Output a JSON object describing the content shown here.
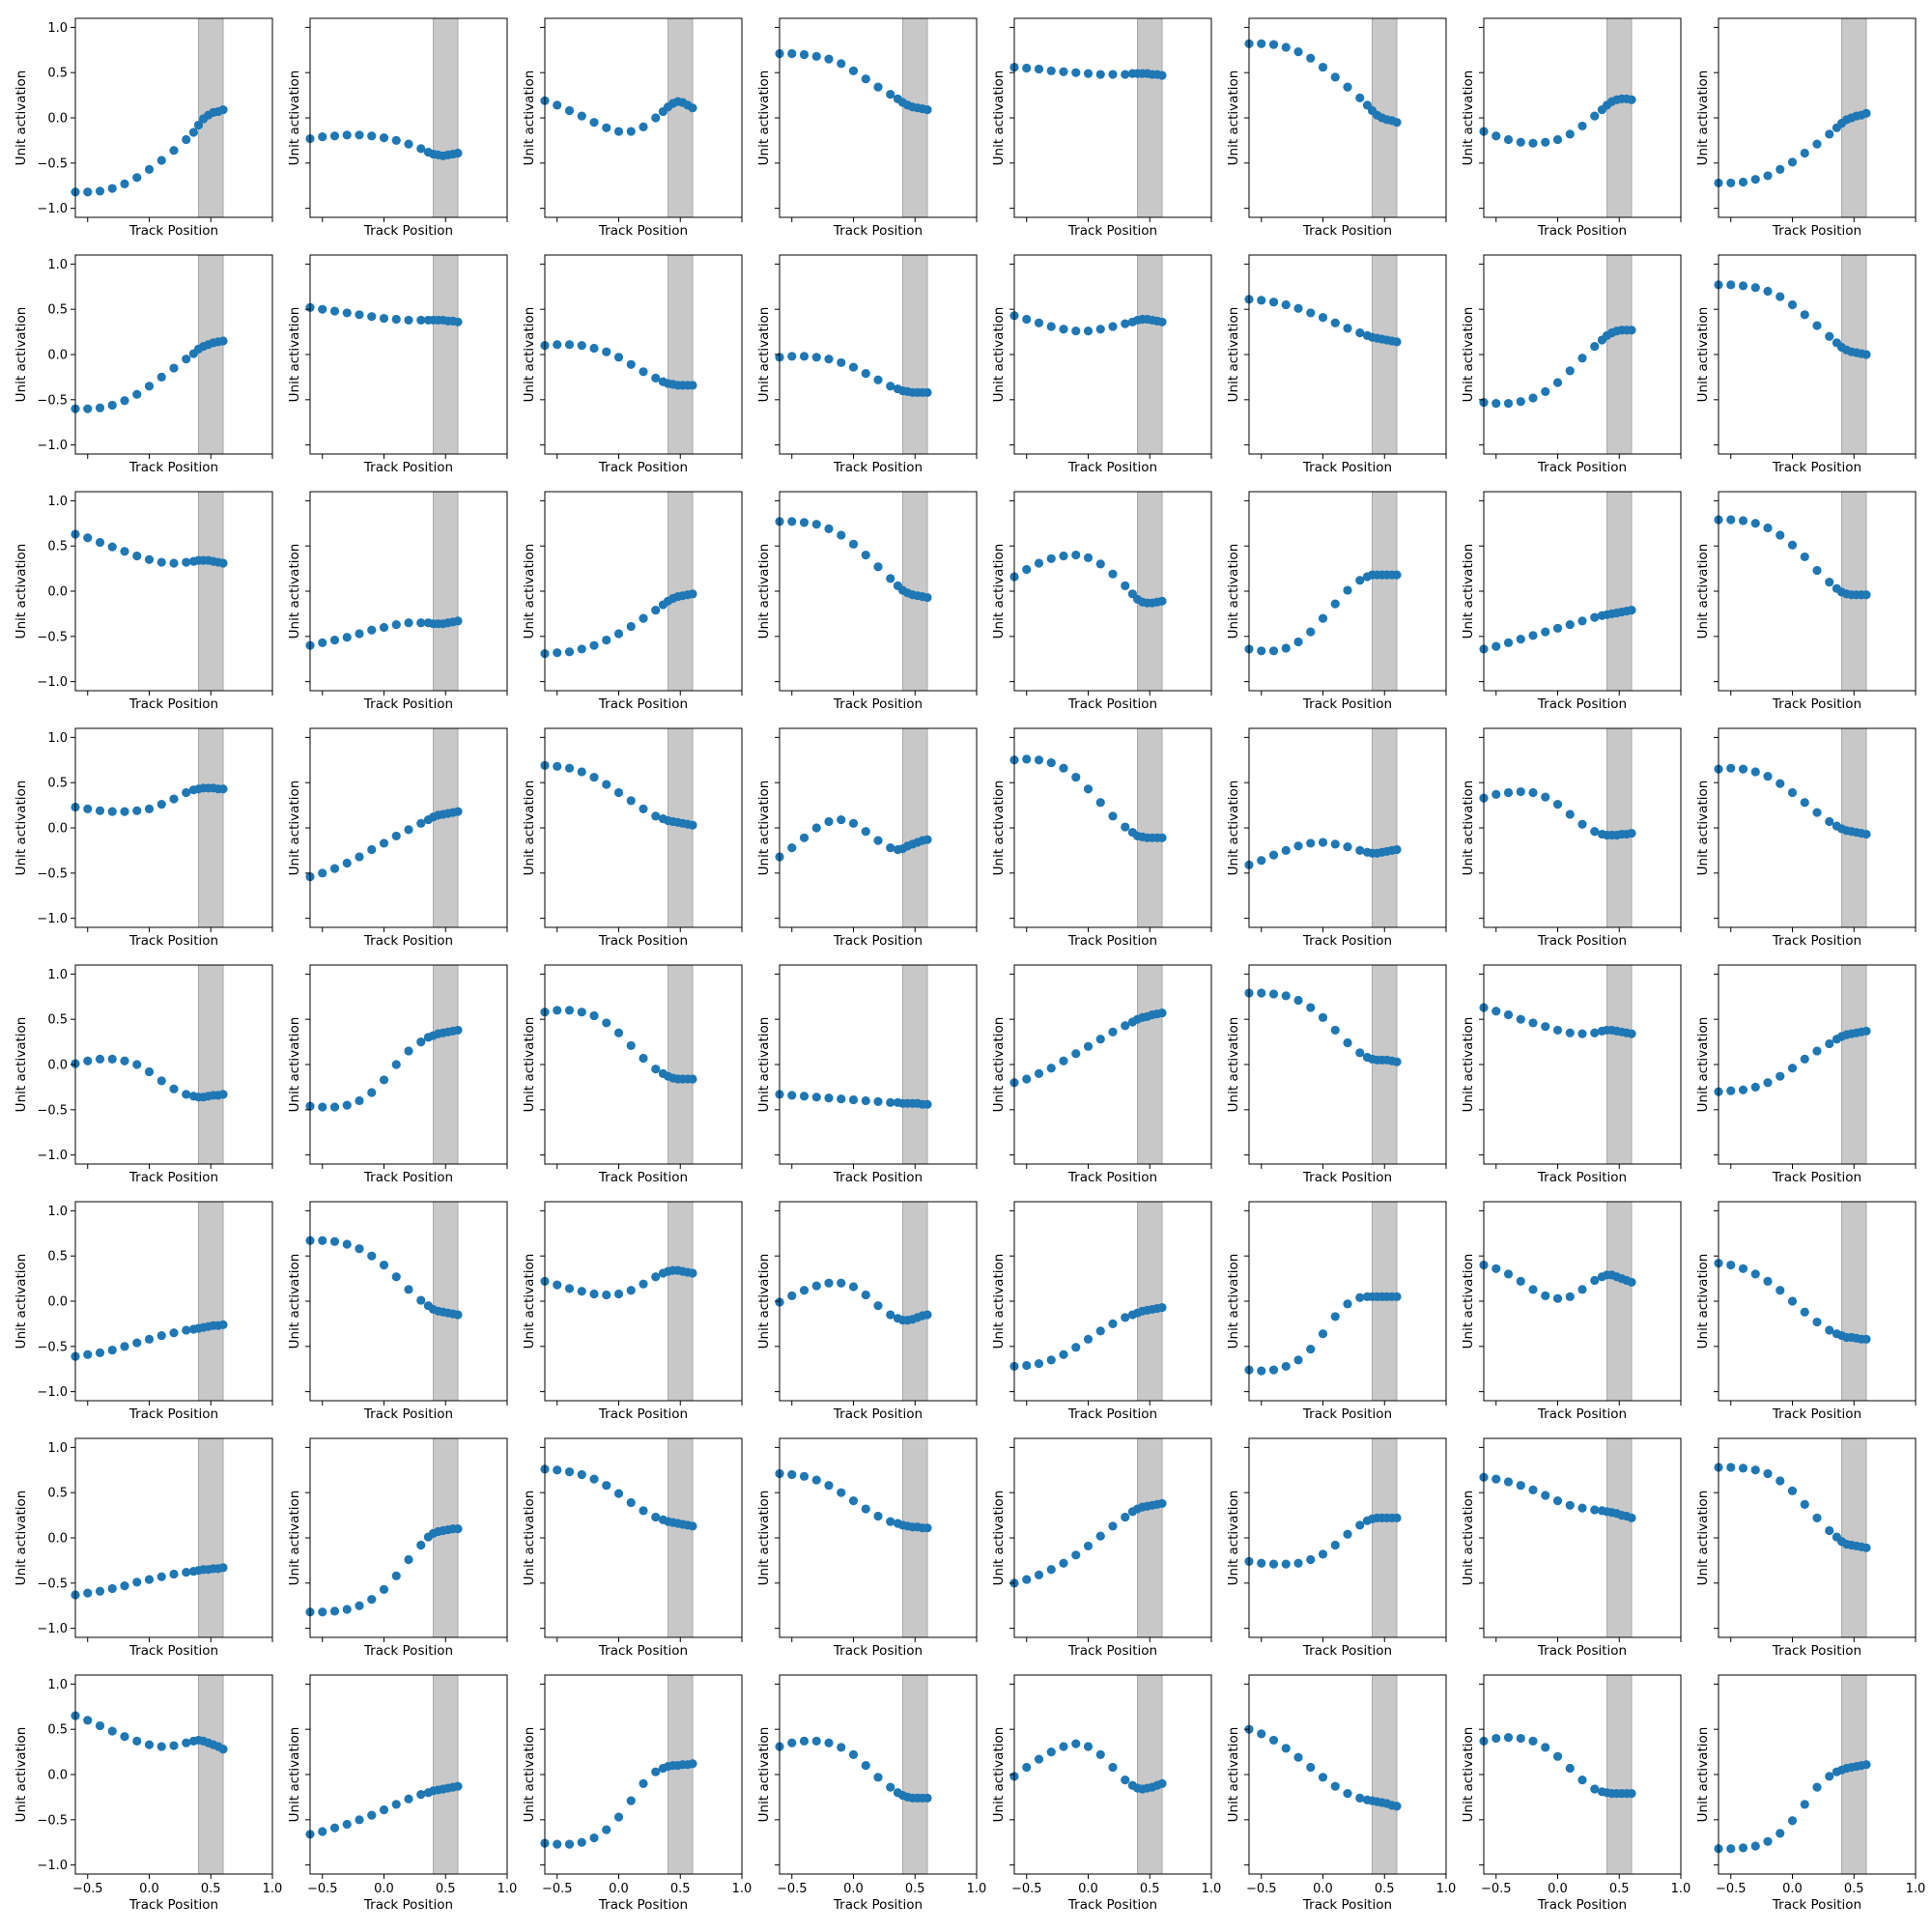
{
  "colors": {
    "marker": "#1f77b4",
    "band": "#c8c8c8",
    "band_edge": "#a9a9a9",
    "axes": "#000000",
    "background": "#ffffff"
  },
  "chart_data": {
    "type": "scatter",
    "layout": "8x8 grid of small multiples, shared x-axis, shared y-axis",
    "xlabel": "Track Position",
    "ylabel": "Unit activation",
    "xlim": [
      -0.6,
      1.0
    ],
    "ylim": [
      -1.1,
      1.1
    ],
    "xticks": [
      -0.5,
      0.0,
      0.5,
      1.0
    ],
    "xtick_labels": [
      "−0.5",
      "0.0",
      "0.5",
      "1.0"
    ],
    "yticks": [
      -1.0,
      -0.5,
      0.0,
      0.5,
      1.0
    ],
    "ytick_labels": [
      "−1.0",
      "−0.5",
      "0.0",
      "0.5",
      "1.0"
    ],
    "grid": false,
    "legend": "none",
    "highlight_band": {
      "x0": 0.4,
      "x1": 0.6
    },
    "x": [
      -0.6,
      -0.5,
      -0.4,
      -0.3,
      -0.2,
      -0.1,
      0.0,
      0.1,
      0.2,
      0.3,
      0.36,
      0.4,
      0.44,
      0.48,
      0.52,
      0.56,
      0.6
    ],
    "panels": [
      [
        -0.82,
        -0.82,
        -0.81,
        -0.78,
        -0.73,
        -0.66,
        -0.57,
        -0.47,
        -0.36,
        -0.24,
        -0.16,
        -0.08,
        -0.01,
        0.03,
        0.06,
        0.07,
        0.09
      ],
      [
        -0.23,
        -0.21,
        -0.2,
        -0.19,
        -0.19,
        -0.2,
        -0.22,
        -0.25,
        -0.29,
        -0.34,
        -0.38,
        -0.4,
        -0.41,
        -0.42,
        -0.41,
        -0.4,
        -0.39
      ],
      [
        0.19,
        0.14,
        0.08,
        0.02,
        -0.05,
        -0.11,
        -0.15,
        -0.15,
        -0.1,
        0.0,
        0.07,
        0.12,
        0.16,
        0.18,
        0.17,
        0.14,
        0.11
      ],
      [
        0.71,
        0.71,
        0.7,
        0.68,
        0.65,
        0.6,
        0.52,
        0.43,
        0.34,
        0.26,
        0.21,
        0.17,
        0.14,
        0.12,
        0.11,
        0.1,
        0.09
      ],
      [
        0.56,
        0.55,
        0.54,
        0.52,
        0.51,
        0.5,
        0.49,
        0.48,
        0.48,
        0.48,
        0.49,
        0.49,
        0.49,
        0.49,
        0.48,
        0.48,
        0.47
      ],
      [
        0.82,
        0.82,
        0.81,
        0.78,
        0.73,
        0.66,
        0.56,
        0.45,
        0.34,
        0.22,
        0.14,
        0.08,
        0.03,
        0.0,
        -0.02,
        -0.03,
        -0.05
      ],
      [
        -0.15,
        -0.2,
        -0.24,
        -0.27,
        -0.28,
        -0.27,
        -0.24,
        -0.18,
        -0.09,
        0.02,
        0.09,
        0.14,
        0.18,
        0.2,
        0.21,
        0.21,
        0.2
      ],
      [
        -0.72,
        -0.72,
        -0.71,
        -0.68,
        -0.64,
        -0.57,
        -0.49,
        -0.39,
        -0.29,
        -0.18,
        -0.11,
        -0.06,
        -0.02,
        0.0,
        0.02,
        0.03,
        0.05
      ],
      [
        -0.6,
        -0.6,
        -0.59,
        -0.56,
        -0.51,
        -0.44,
        -0.35,
        -0.25,
        -0.15,
        -0.05,
        0.01,
        0.06,
        0.09,
        0.11,
        0.13,
        0.14,
        0.15
      ],
      [
        0.52,
        0.5,
        0.48,
        0.46,
        0.44,
        0.42,
        0.4,
        0.39,
        0.38,
        0.38,
        0.38,
        0.38,
        0.38,
        0.38,
        0.37,
        0.37,
        0.36
      ],
      [
        0.1,
        0.11,
        0.11,
        0.1,
        0.07,
        0.03,
        -0.03,
        -0.11,
        -0.19,
        -0.26,
        -0.3,
        -0.32,
        -0.33,
        -0.34,
        -0.34,
        -0.34,
        -0.34
      ],
      [
        -0.03,
        -0.02,
        -0.02,
        -0.03,
        -0.05,
        -0.09,
        -0.14,
        -0.21,
        -0.28,
        -0.35,
        -0.38,
        -0.4,
        -0.41,
        -0.42,
        -0.42,
        -0.42,
        -0.42
      ],
      [
        0.43,
        0.39,
        0.35,
        0.31,
        0.28,
        0.26,
        0.26,
        0.28,
        0.31,
        0.34,
        0.36,
        0.38,
        0.39,
        0.39,
        0.38,
        0.37,
        0.36
      ],
      [
        0.61,
        0.6,
        0.58,
        0.55,
        0.51,
        0.46,
        0.41,
        0.35,
        0.29,
        0.24,
        0.21,
        0.19,
        0.18,
        0.17,
        0.16,
        0.15,
        0.14
      ],
      [
        -0.53,
        -0.54,
        -0.54,
        -0.52,
        -0.48,
        -0.41,
        -0.31,
        -0.18,
        -0.04,
        0.09,
        0.16,
        0.21,
        0.24,
        0.26,
        0.27,
        0.27,
        0.27
      ],
      [
        0.77,
        0.77,
        0.76,
        0.74,
        0.7,
        0.64,
        0.55,
        0.44,
        0.32,
        0.2,
        0.13,
        0.08,
        0.05,
        0.03,
        0.02,
        0.01,
        0.0
      ],
      [
        0.63,
        0.59,
        0.54,
        0.49,
        0.44,
        0.39,
        0.35,
        0.32,
        0.31,
        0.32,
        0.33,
        0.34,
        0.34,
        0.34,
        0.33,
        0.32,
        0.31
      ],
      [
        -0.6,
        -0.57,
        -0.54,
        -0.51,
        -0.47,
        -0.43,
        -0.4,
        -0.37,
        -0.35,
        -0.35,
        -0.35,
        -0.36,
        -0.36,
        -0.36,
        -0.35,
        -0.34,
        -0.33
      ],
      [
        -0.69,
        -0.68,
        -0.67,
        -0.64,
        -0.6,
        -0.54,
        -0.47,
        -0.39,
        -0.3,
        -0.21,
        -0.15,
        -0.11,
        -0.08,
        -0.06,
        -0.05,
        -0.04,
        -0.03
      ],
      [
        0.77,
        0.77,
        0.76,
        0.74,
        0.69,
        0.62,
        0.52,
        0.4,
        0.27,
        0.14,
        0.06,
        0.01,
        -0.02,
        -0.04,
        -0.05,
        -0.06,
        -0.07
      ],
      [
        0.16,
        0.24,
        0.31,
        0.36,
        0.39,
        0.4,
        0.37,
        0.3,
        0.19,
        0.06,
        -0.03,
        -0.09,
        -0.12,
        -0.13,
        -0.13,
        -0.12,
        -0.11
      ],
      [
        -0.64,
        -0.66,
        -0.66,
        -0.63,
        -0.56,
        -0.45,
        -0.3,
        -0.14,
        0.01,
        0.12,
        0.16,
        0.18,
        0.18,
        0.18,
        0.18,
        0.18,
        0.18
      ],
      [
        -0.64,
        -0.61,
        -0.57,
        -0.53,
        -0.49,
        -0.45,
        -0.41,
        -0.37,
        -0.33,
        -0.29,
        -0.27,
        -0.26,
        -0.25,
        -0.24,
        -0.23,
        -0.22,
        -0.21
      ],
      [
        0.79,
        0.79,
        0.78,
        0.75,
        0.7,
        0.62,
        0.51,
        0.38,
        0.23,
        0.1,
        0.03,
        -0.01,
        -0.03,
        -0.04,
        -0.04,
        -0.04,
        -0.04
      ],
      [
        0.23,
        0.21,
        0.19,
        0.18,
        0.18,
        0.19,
        0.21,
        0.26,
        0.32,
        0.39,
        0.42,
        0.43,
        0.44,
        0.44,
        0.44,
        0.43,
        0.43
      ],
      [
        -0.54,
        -0.5,
        -0.45,
        -0.39,
        -0.32,
        -0.24,
        -0.17,
        -0.09,
        -0.02,
        0.05,
        0.09,
        0.12,
        0.14,
        0.15,
        0.16,
        0.17,
        0.18
      ],
      [
        0.69,
        0.68,
        0.66,
        0.62,
        0.56,
        0.48,
        0.39,
        0.3,
        0.21,
        0.13,
        0.1,
        0.08,
        0.07,
        0.06,
        0.05,
        0.04,
        0.03
      ],
      [
        -0.32,
        -0.22,
        -0.11,
        0.0,
        0.07,
        0.09,
        0.05,
        -0.04,
        -0.14,
        -0.22,
        -0.24,
        -0.23,
        -0.2,
        -0.18,
        -0.16,
        -0.14,
        -0.13
      ],
      [
        0.75,
        0.76,
        0.75,
        0.72,
        0.66,
        0.56,
        0.43,
        0.28,
        0.13,
        0.01,
        -0.05,
        -0.09,
        -0.1,
        -0.11,
        -0.11,
        -0.11,
        -0.11
      ],
      [
        -0.41,
        -0.36,
        -0.3,
        -0.25,
        -0.2,
        -0.17,
        -0.16,
        -0.18,
        -0.21,
        -0.25,
        -0.27,
        -0.28,
        -0.28,
        -0.27,
        -0.26,
        -0.25,
        -0.24
      ],
      [
        0.33,
        0.37,
        0.39,
        0.4,
        0.39,
        0.34,
        0.26,
        0.15,
        0.04,
        -0.04,
        -0.07,
        -0.08,
        -0.08,
        -0.08,
        -0.07,
        -0.07,
        -0.06
      ],
      [
        0.65,
        0.66,
        0.65,
        0.62,
        0.57,
        0.49,
        0.39,
        0.28,
        0.17,
        0.07,
        0.02,
        -0.01,
        -0.03,
        -0.04,
        -0.05,
        -0.06,
        -0.07
      ],
      [
        0.01,
        0.04,
        0.06,
        0.06,
        0.04,
        0.0,
        -0.08,
        -0.18,
        -0.27,
        -0.33,
        -0.35,
        -0.36,
        -0.36,
        -0.35,
        -0.34,
        -0.34,
        -0.33
      ],
      [
        -0.46,
        -0.47,
        -0.47,
        -0.45,
        -0.4,
        -0.31,
        -0.17,
        0.0,
        0.15,
        0.25,
        0.3,
        0.32,
        0.34,
        0.35,
        0.36,
        0.37,
        0.38
      ],
      [
        0.58,
        0.6,
        0.6,
        0.58,
        0.54,
        0.46,
        0.35,
        0.21,
        0.07,
        -0.05,
        -0.1,
        -0.13,
        -0.15,
        -0.16,
        -0.16,
        -0.16,
        -0.16
      ],
      [
        -0.33,
        -0.34,
        -0.35,
        -0.36,
        -0.37,
        -0.38,
        -0.39,
        -0.4,
        -0.41,
        -0.42,
        -0.42,
        -0.43,
        -0.43,
        -0.43,
        -0.43,
        -0.44,
        -0.44
      ],
      [
        -0.2,
        -0.16,
        -0.1,
        -0.04,
        0.04,
        0.12,
        0.2,
        0.28,
        0.36,
        0.43,
        0.47,
        0.5,
        0.52,
        0.53,
        0.55,
        0.56,
        0.57
      ],
      [
        0.79,
        0.79,
        0.78,
        0.76,
        0.71,
        0.63,
        0.52,
        0.38,
        0.24,
        0.13,
        0.08,
        0.06,
        0.05,
        0.05,
        0.05,
        0.04,
        0.03
      ],
      [
        0.63,
        0.59,
        0.55,
        0.5,
        0.46,
        0.42,
        0.38,
        0.35,
        0.34,
        0.35,
        0.37,
        0.38,
        0.38,
        0.37,
        0.36,
        0.35,
        0.34
      ],
      [
        -0.3,
        -0.29,
        -0.28,
        -0.25,
        -0.2,
        -0.13,
        -0.04,
        0.06,
        0.15,
        0.23,
        0.28,
        0.31,
        0.33,
        0.34,
        0.35,
        0.36,
        0.37
      ],
      [
        -0.61,
        -0.59,
        -0.57,
        -0.54,
        -0.5,
        -0.46,
        -0.42,
        -0.38,
        -0.35,
        -0.32,
        -0.31,
        -0.3,
        -0.29,
        -0.28,
        -0.27,
        -0.27,
        -0.26
      ],
      [
        0.67,
        0.67,
        0.66,
        0.63,
        0.58,
        0.5,
        0.4,
        0.27,
        0.13,
        0.01,
        -0.05,
        -0.09,
        -0.11,
        -0.12,
        -0.13,
        -0.14,
        -0.15
      ],
      [
        0.22,
        0.18,
        0.14,
        0.11,
        0.08,
        0.07,
        0.08,
        0.12,
        0.19,
        0.27,
        0.31,
        0.33,
        0.34,
        0.34,
        0.33,
        0.32,
        0.31
      ],
      [
        -0.01,
        0.06,
        0.12,
        0.17,
        0.2,
        0.2,
        0.16,
        0.07,
        -0.05,
        -0.15,
        -0.19,
        -0.21,
        -0.21,
        -0.2,
        -0.18,
        -0.16,
        -0.15
      ],
      [
        -0.72,
        -0.71,
        -0.69,
        -0.65,
        -0.59,
        -0.51,
        -0.42,
        -0.33,
        -0.25,
        -0.18,
        -0.15,
        -0.13,
        -0.11,
        -0.1,
        -0.09,
        -0.08,
        -0.07
      ],
      [
        -0.76,
        -0.77,
        -0.76,
        -0.72,
        -0.65,
        -0.53,
        -0.36,
        -0.17,
        -0.03,
        0.04,
        0.05,
        0.05,
        0.05,
        0.05,
        0.05,
        0.05,
        0.05
      ],
      [
        0.4,
        0.36,
        0.3,
        0.22,
        0.13,
        0.06,
        0.03,
        0.05,
        0.13,
        0.23,
        0.27,
        0.29,
        0.29,
        0.27,
        0.25,
        0.23,
        0.21
      ],
      [
        0.42,
        0.4,
        0.36,
        0.3,
        0.22,
        0.12,
        0.0,
        -0.12,
        -0.23,
        -0.32,
        -0.36,
        -0.38,
        -0.4,
        -0.4,
        -0.41,
        -0.42,
        -0.42
      ],
      [
        -0.63,
        -0.61,
        -0.59,
        -0.56,
        -0.53,
        -0.49,
        -0.46,
        -0.43,
        -0.4,
        -0.38,
        -0.37,
        -0.36,
        -0.35,
        -0.35,
        -0.34,
        -0.34,
        -0.33
      ],
      [
        -0.82,
        -0.82,
        -0.81,
        -0.79,
        -0.75,
        -0.68,
        -0.57,
        -0.42,
        -0.24,
        -0.08,
        0.01,
        0.05,
        0.07,
        0.08,
        0.09,
        0.1,
        0.1
      ],
      [
        0.76,
        0.75,
        0.73,
        0.7,
        0.65,
        0.58,
        0.49,
        0.39,
        0.3,
        0.23,
        0.2,
        0.18,
        0.17,
        0.16,
        0.15,
        0.14,
        0.13
      ],
      [
        0.71,
        0.7,
        0.68,
        0.64,
        0.58,
        0.5,
        0.41,
        0.32,
        0.24,
        0.18,
        0.16,
        0.14,
        0.13,
        0.12,
        0.12,
        0.11,
        0.11
      ],
      [
        -0.5,
        -0.46,
        -0.41,
        -0.35,
        -0.28,
        -0.19,
        -0.09,
        0.02,
        0.13,
        0.23,
        0.29,
        0.32,
        0.34,
        0.35,
        0.36,
        0.37,
        0.38
      ],
      [
        -0.26,
        -0.28,
        -0.29,
        -0.29,
        -0.28,
        -0.24,
        -0.18,
        -0.08,
        0.04,
        0.14,
        0.19,
        0.21,
        0.22,
        0.22,
        0.22,
        0.22,
        0.22
      ],
      [
        0.67,
        0.65,
        0.62,
        0.58,
        0.53,
        0.47,
        0.41,
        0.36,
        0.33,
        0.31,
        0.3,
        0.29,
        0.28,
        0.27,
        0.25,
        0.24,
        0.22
      ],
      [
        0.78,
        0.78,
        0.77,
        0.75,
        0.71,
        0.63,
        0.52,
        0.37,
        0.22,
        0.08,
        0.01,
        -0.04,
        -0.07,
        -0.08,
        -0.09,
        -0.1,
        -0.11
      ],
      [
        0.65,
        0.6,
        0.54,
        0.48,
        0.42,
        0.37,
        0.33,
        0.31,
        0.32,
        0.35,
        0.37,
        0.38,
        0.37,
        0.35,
        0.33,
        0.31,
        0.28
      ],
      [
        -0.66,
        -0.63,
        -0.59,
        -0.55,
        -0.5,
        -0.45,
        -0.39,
        -0.33,
        -0.27,
        -0.22,
        -0.2,
        -0.18,
        -0.17,
        -0.16,
        -0.15,
        -0.14,
        -0.13
      ],
      [
        -0.76,
        -0.77,
        -0.77,
        -0.75,
        -0.7,
        -0.61,
        -0.47,
        -0.29,
        -0.1,
        0.03,
        0.07,
        0.09,
        0.1,
        0.1,
        0.11,
        0.11,
        0.12
      ],
      [
        0.31,
        0.35,
        0.37,
        0.37,
        0.35,
        0.3,
        0.22,
        0.1,
        -0.03,
        -0.14,
        -0.2,
        -0.23,
        -0.25,
        -0.26,
        -0.26,
        -0.26,
        -0.26
      ],
      [
        -0.02,
        0.08,
        0.17,
        0.25,
        0.31,
        0.34,
        0.31,
        0.22,
        0.08,
        -0.06,
        -0.12,
        -0.15,
        -0.16,
        -0.15,
        -0.14,
        -0.12,
        -0.1
      ],
      [
        0.5,
        0.45,
        0.38,
        0.29,
        0.19,
        0.08,
        -0.03,
        -0.13,
        -0.21,
        -0.26,
        -0.28,
        -0.29,
        -0.3,
        -0.31,
        -0.32,
        -0.34,
        -0.35
      ],
      [
        0.37,
        0.4,
        0.41,
        0.4,
        0.37,
        0.3,
        0.2,
        0.07,
        -0.06,
        -0.16,
        -0.19,
        -0.2,
        -0.21,
        -0.21,
        -0.21,
        -0.21,
        -0.21
      ],
      [
        -0.82,
        -0.82,
        -0.81,
        -0.79,
        -0.74,
        -0.65,
        -0.51,
        -0.33,
        -0.14,
        -0.02,
        0.03,
        0.05,
        0.07,
        0.08,
        0.09,
        0.1,
        0.11
      ]
    ]
  }
}
